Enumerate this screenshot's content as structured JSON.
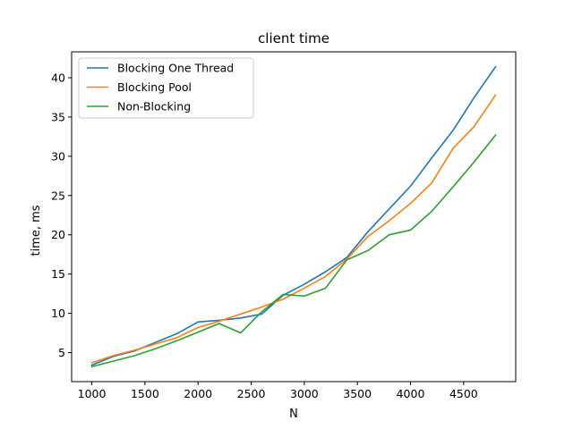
{
  "chart_data": {
    "type": "line",
    "title": "client time",
    "xlabel": "N",
    "ylabel": "time, ms",
    "xlim": [
      810,
      4990
    ],
    "ylim": [
      1.3,
      43.3
    ],
    "xticks": [
      1000,
      1500,
      2000,
      2500,
      3000,
      3500,
      4000,
      4500
    ],
    "yticks": [
      5,
      10,
      15,
      20,
      25,
      30,
      35,
      40
    ],
    "grid": false,
    "legend_position": "upper-left",
    "x": [
      1000,
      1200,
      1400,
      1600,
      1800,
      2000,
      2200,
      2400,
      2600,
      2800,
      3000,
      3200,
      3400,
      3600,
      3800,
      4000,
      4200,
      4400,
      4600,
      4800
    ],
    "series": [
      {
        "name": "Blocking One Thread",
        "color": "#1f77b4",
        "values": [
          3.4,
          4.5,
          5.2,
          6.3,
          7.4,
          8.9,
          9.1,
          9.4,
          9.9,
          12.3,
          13.7,
          15.3,
          17.1,
          20.4,
          23.3,
          26.2,
          29.8,
          33.3,
          37.5,
          41.4
        ]
      },
      {
        "name": "Blocking Pool",
        "color": "#ff7f0e",
        "values": [
          3.7,
          4.6,
          5.3,
          6.1,
          6.9,
          8.2,
          9.0,
          9.9,
          10.8,
          11.8,
          13.2,
          14.7,
          16.9,
          19.8,
          21.8,
          24.0,
          26.6,
          31.0,
          33.8,
          37.8
        ]
      },
      {
        "name": "Non-Blocking",
        "color": "#2ca02c",
        "values": [
          3.2,
          3.9,
          4.6,
          5.5,
          6.5,
          7.6,
          8.7,
          7.5,
          10.2,
          12.4,
          12.2,
          13.2,
          16.8,
          18.0,
          20.0,
          20.6,
          23.0,
          26.1,
          29.3,
          32.7
        ]
      }
    ]
  }
}
